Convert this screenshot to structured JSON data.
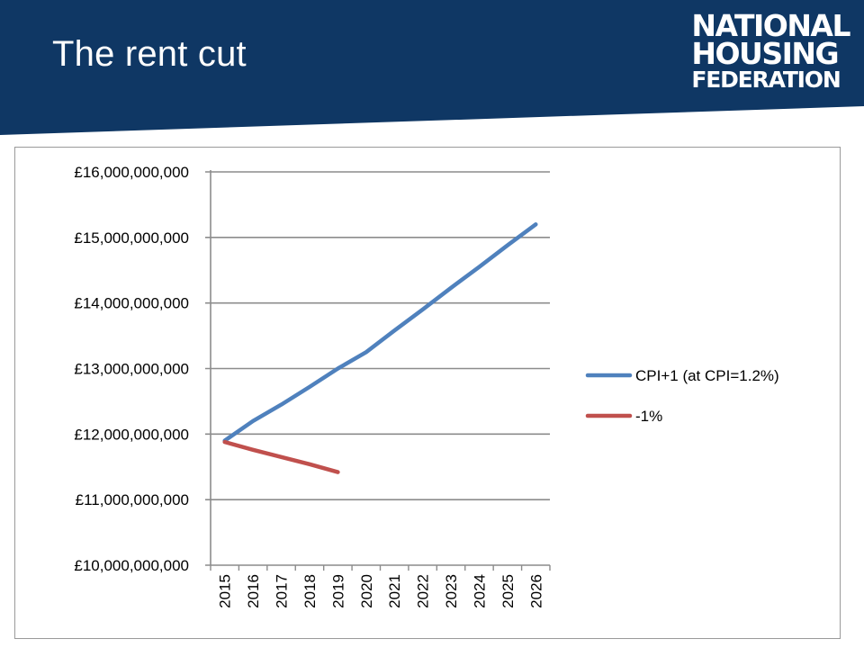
{
  "slide": {
    "title": "The rent cut",
    "logo": {
      "line1": "NATIONAL",
      "line2": "HOUSING",
      "line3": "FEDERATION"
    },
    "header_color": "#0f3764"
  },
  "chart_data": {
    "type": "line",
    "title": "",
    "xlabel": "",
    "ylabel": "",
    "x": [
      "2015",
      "2016",
      "2017",
      "2018",
      "2019",
      "2020",
      "2021",
      "2022",
      "2023",
      "2024",
      "2025",
      "2026"
    ],
    "ylim": [
      10000000000,
      16000000000
    ],
    "y_ticks": [
      10000000000,
      11000000000,
      12000000000,
      13000000000,
      14000000000,
      15000000000,
      16000000000
    ],
    "y_tick_labels": [
      "£10,000,000,000",
      "£11,000,000,000",
      "£12,000,000,000",
      "£13,000,000,000",
      "£14,000,000,000",
      "£15,000,000,000",
      "£16,000,000,000"
    ],
    "grid": "horizontal",
    "legend_position": "right",
    "series": [
      {
        "name": "CPI+1 (at CPI=1.2%)",
        "color": "#4f81bd",
        "values": [
          11900000000,
          12200000000,
          12450000000,
          12720000000,
          13000000000,
          13250000000,
          13580000000,
          13900000000,
          14230000000,
          14550000000,
          14880000000,
          15200000000
        ]
      },
      {
        "name": "-1%",
        "color": "#c0504d",
        "values": [
          11880000000,
          11760000000,
          11650000000,
          11540000000,
          11420000000,
          null,
          null,
          null,
          null,
          null,
          null,
          null
        ]
      }
    ]
  }
}
